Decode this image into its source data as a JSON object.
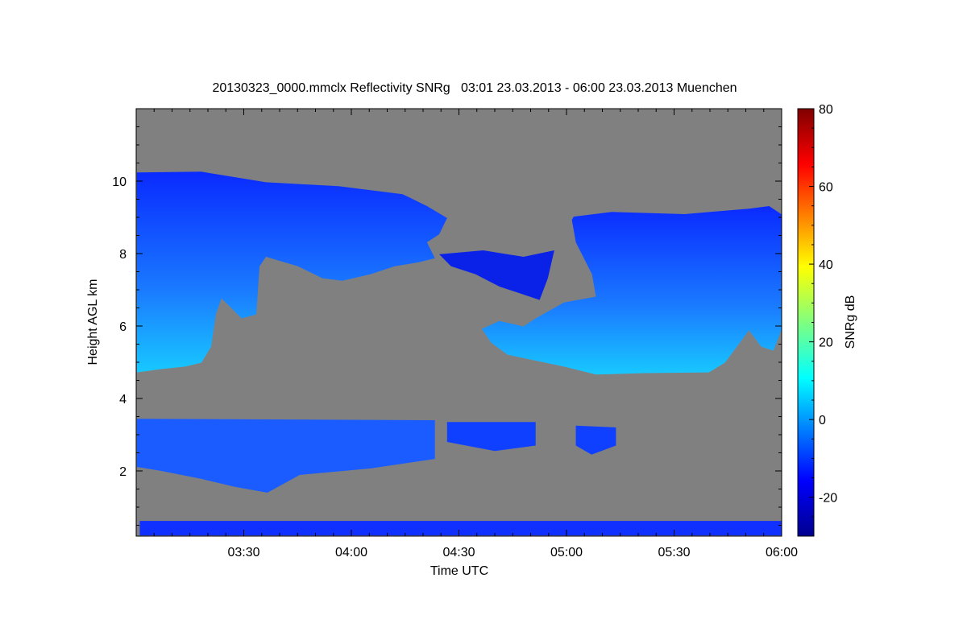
{
  "chart_data": {
    "type": "heatmap",
    "title": "20130323_0000.mmclx Reflectivity SNRg   03:01 23.03.2013 - 06:00 23.03.2013 Muenchen",
    "xlabel": "Time UTC",
    "ylabel": "Height AGL km",
    "colorbar_label": "SNRg dB",
    "x_unit": "minutes after 03:00",
    "xlim": [
      1,
      180
    ],
    "ylim": [
      0.2,
      12
    ],
    "clim": [
      -30,
      80
    ],
    "x_ticks": [
      {
        "v": 30,
        "label": "03:30"
      },
      {
        "v": 60,
        "label": "04:00"
      },
      {
        "v": 90,
        "label": "04:30"
      },
      {
        "v": 120,
        "label": "05:00"
      },
      {
        "v": 150,
        "label": "05:30"
      },
      {
        "v": 180,
        "label": "06:00"
      }
    ],
    "y_ticks": [
      {
        "v": 2,
        "label": "2"
      },
      {
        "v": 4,
        "label": "4"
      },
      {
        "v": 6,
        "label": "6"
      },
      {
        "v": 8,
        "label": "8"
      },
      {
        "v": 10,
        "label": "10"
      }
    ],
    "c_ticks": [
      {
        "v": -20,
        "label": "-20"
      },
      {
        "v": 0,
        "label": "0"
      },
      {
        "v": 20,
        "label": "20"
      },
      {
        "v": 40,
        "label": "40"
      },
      {
        "v": 60,
        "label": "60"
      },
      {
        "v": 80,
        "label": "80"
      }
    ],
    "background_color": "#808080",
    "features": [
      {
        "name": "upper-cloud-left",
        "snr_db": -5,
        "polygon": [
          [
            0.2,
            10.24
          ],
          [
            18.2,
            10.26
          ],
          [
            36.2,
            9.97
          ],
          [
            56.4,
            9.86
          ],
          [
            74.3,
            9.64
          ],
          [
            81.1,
            9.31
          ],
          [
            86.7,
            8.98
          ],
          [
            84.5,
            8.53
          ],
          [
            81.1,
            8.31
          ],
          [
            83.3,
            7.87
          ],
          [
            78.8,
            7.76
          ],
          [
            72.1,
            7.65
          ],
          [
            65.4,
            7.43
          ],
          [
            57.5,
            7.25
          ],
          [
            51.9,
            7.32
          ],
          [
            45.1,
            7.65
          ],
          [
            36.2,
            7.91
          ],
          [
            34.4,
            7.65
          ],
          [
            33.5,
            6.32
          ],
          [
            29.4,
            6.21
          ],
          [
            26.1,
            6.54
          ],
          [
            23.8,
            6.76
          ],
          [
            22.2,
            6.32
          ],
          [
            20.9,
            5.43
          ],
          [
            18.2,
            4.99
          ],
          [
            13.7,
            4.88
          ],
          [
            7,
            4.81
          ],
          [
            0.2,
            4.72
          ]
        ]
      },
      {
        "name": "upper-cloud-middle",
        "snr_db": -15,
        "polygon": [
          [
            84.5,
            7.98
          ],
          [
            96.8,
            8.09
          ],
          [
            108,
            7.91
          ],
          [
            116.6,
            8.09
          ],
          [
            114.8,
            7.32
          ],
          [
            112.5,
            6.72
          ],
          [
            108,
            6.87
          ],
          [
            101.3,
            7.09
          ],
          [
            94.6,
            7.43
          ],
          [
            87.8,
            7.65
          ]
        ]
      },
      {
        "name": "upper-cloud-right",
        "snr_db": -3,
        "polygon": [
          [
            122,
            9.02
          ],
          [
            132.7,
            9.15
          ],
          [
            153,
            9.09
          ],
          [
            170.9,
            9.24
          ],
          [
            176.5,
            9.31
          ],
          [
            179.9,
            9.09
          ],
          [
            179.9,
            5.88
          ],
          [
            177.7,
            5.32
          ],
          [
            174.3,
            5.43
          ],
          [
            170.9,
            5.88
          ],
          [
            164.2,
            4.99
          ],
          [
            159.7,
            4.72
          ],
          [
            141.7,
            4.7
          ],
          [
            128.2,
            4.66
          ],
          [
            119.3,
            4.88
          ],
          [
            103.5,
            5.21
          ],
          [
            99,
            5.54
          ],
          [
            96.4,
            5.92
          ],
          [
            101.3,
            6.14
          ],
          [
            108,
            5.99
          ],
          [
            111.4,
            6.21
          ],
          [
            119.3,
            6.65
          ],
          [
            128.2,
            6.81
          ],
          [
            127.1,
            7.43
          ],
          [
            122.6,
            8.31
          ],
          [
            121.5,
            8.93
          ]
        ]
      },
      {
        "name": "lower-cloud-main",
        "snr_db": -8,
        "polygon": [
          [
            0.2,
            3.44
          ],
          [
            83.3,
            3.4
          ],
          [
            83.3,
            2.33
          ],
          [
            65.4,
            2.07
          ],
          [
            45.6,
            1.89
          ],
          [
            36.6,
            1.4
          ],
          [
            27.5,
            1.56
          ],
          [
            18.2,
            1.78
          ],
          [
            7,
            2.0
          ],
          [
            0.2,
            2.11
          ]
        ]
      },
      {
        "name": "lower-cloud-patch-1",
        "snr_db": -12,
        "polygon": [
          [
            86.7,
            3.35
          ],
          [
            111.4,
            3.35
          ],
          [
            111.4,
            2.7
          ],
          [
            100,
            2.55
          ],
          [
            86.7,
            2.8
          ]
        ]
      },
      {
        "name": "lower-cloud-patch-2",
        "snr_db": -12,
        "polygon": [
          [
            122.6,
            3.25
          ],
          [
            133.8,
            3.2
          ],
          [
            133.8,
            2.7
          ],
          [
            127,
            2.45
          ],
          [
            122.6,
            2.7
          ]
        ]
      },
      {
        "name": "ground-clutter",
        "snr_db": -18,
        "polygon": [
          [
            1,
            0.62
          ],
          [
            180,
            0.62
          ],
          [
            180,
            0.22
          ],
          [
            1,
            0.22
          ]
        ]
      }
    ]
  }
}
